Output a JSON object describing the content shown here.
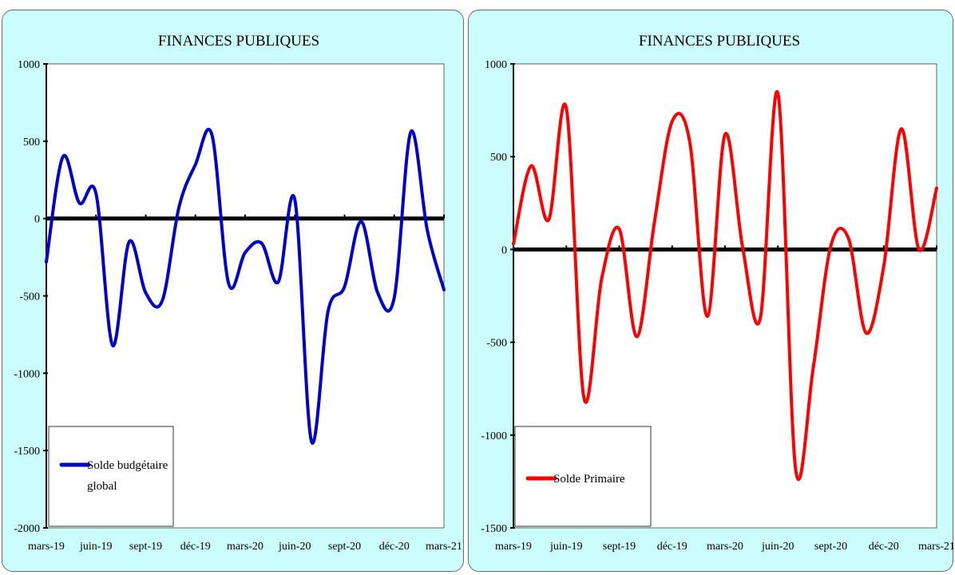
{
  "charts": [
    {
      "chart_data": {
        "type": "line",
        "title": "FINANCES PUBLIQUES",
        "xlabel": "",
        "ylabel": "",
        "ylim": [
          -2000,
          1000
        ],
        "yticks": [
          1000,
          500,
          0,
          -500,
          -1000,
          -1500,
          -2000
        ],
        "ytick_labels": [
          "1000",
          "500",
          "0",
          "-500",
          "-1000",
          "-1500",
          "-2000"
        ],
        "x_tick_labels": [
          "mars-19",
          "juin-19",
          "sept-19",
          "déc-19",
          "mars-20",
          "juin-20",
          "sept-20",
          "déc-20",
          "mars-21"
        ],
        "x_months": [
          "03-2019",
          "04-2019",
          "05-2019",
          "06-2019",
          "07-2019",
          "08-2019",
          "09-2019",
          "10-2019",
          "11-2019",
          "12-2019",
          "01-2020",
          "02-2020",
          "03-2020",
          "04-2020",
          "05-2020",
          "06-2020",
          "07-2020",
          "08-2020",
          "09-2020",
          "10-2020",
          "11-2020",
          "12-2020",
          "01-2021",
          "02-2021",
          "03-2021"
        ],
        "series": [
          {
            "name": "Solde budgétaire global",
            "color": "#0000cc",
            "values": [
              -280,
              400,
              100,
              160,
              -820,
              -150,
              -480,
              -530,
              70,
              350,
              540,
              -420,
              -220,
              -160,
              -410,
              120,
              -1440,
              -600,
              -440,
              -20,
              -480,
              -510,
              560,
              -80,
              -460
            ]
          }
        ],
        "legend": "bottom-left",
        "grid": false,
        "zero_line": true
      }
    },
    {
      "chart_data": {
        "type": "line",
        "title": "FINANCES PUBLIQUES",
        "xlabel": "",
        "ylabel": "",
        "ylim": [
          -1500,
          1000
        ],
        "yticks": [
          1000,
          500,
          0,
          -500,
          -1000,
          -1500
        ],
        "ytick_labels": [
          "1000",
          "500",
          "0",
          "-500",
          "-1000",
          "-1500"
        ],
        "x_tick_labels": [
          "mars-19",
          "juin-19",
          "sept-19",
          "déc-19",
          "mars-20",
          "juin-20",
          "sept-20",
          "déc-20",
          "mars-21"
        ],
        "x_months": [
          "03-2019",
          "04-2019",
          "05-2019",
          "06-2019",
          "07-2019",
          "08-2019",
          "09-2019",
          "10-2019",
          "11-2019",
          "12-2019",
          "01-2020",
          "02-2020",
          "03-2020",
          "04-2020",
          "05-2020",
          "06-2020",
          "07-2020",
          "08-2020",
          "09-2020",
          "10-2020",
          "11-2020",
          "12-2020",
          "01-2021",
          "02-2021",
          "03-2021"
        ],
        "series": [
          {
            "name": "Solde Primaire",
            "color": "#ff0000",
            "values": [
              30,
              450,
              160,
              760,
              -800,
              -160,
              110,
              -470,
              150,
              690,
              580,
              -360,
              620,
              10,
              -370,
              840,
              -1180,
              -640,
              20,
              60,
              -450,
              -90,
              650,
              0,
              330
            ]
          }
        ],
        "legend": "bottom-left",
        "grid": false,
        "zero_line": true
      }
    }
  ]
}
